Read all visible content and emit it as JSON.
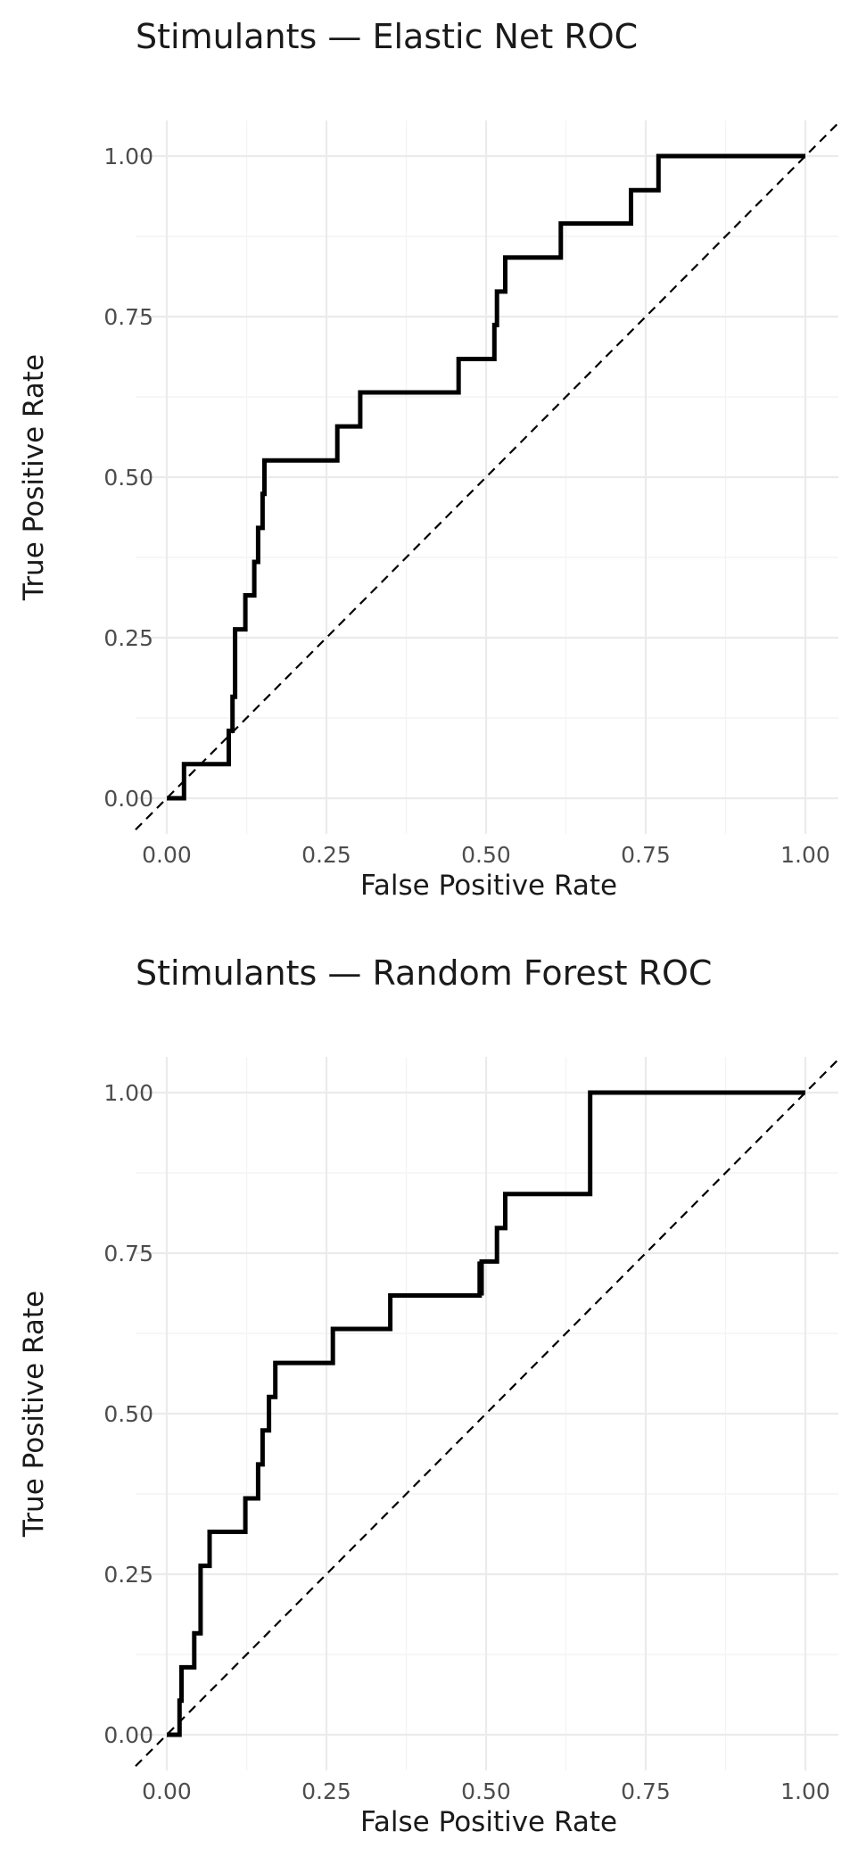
{
  "chart_data": [
    {
      "type": "line",
      "title": "Stimulants — Elastic Net ROC",
      "xlabel": "False Positive Rate",
      "ylabel": "True Positive Rate",
      "xlim": [
        0,
        1
      ],
      "ylim": [
        0,
        1
      ],
      "xticks": [
        "0.00",
        "0.25",
        "0.50",
        "0.75",
        "1.00"
      ],
      "yticks": [
        "0.00",
        "0.25",
        "0.50",
        "0.75",
        "1.00"
      ],
      "grid": true,
      "reference_line": "diagonal dashed y = x",
      "series": [
        {
          "x": [
            0,
            0.027,
            0.027,
            0.097,
            0.097,
            0.103,
            0.103,
            0.107,
            0.107,
            0.123,
            0.123,
            0.137,
            0.137,
            0.143,
            0.143,
            0.15,
            0.15,
            0.153,
            0.153,
            0.267,
            0.267,
            0.303,
            0.303,
            0.457,
            0.457,
            0.513,
            0.513,
            0.517,
            0.517,
            0.53,
            0.53,
            0.617,
            0.617,
            0.727,
            0.727,
            0.77,
            0.77,
            1.0
          ],
          "y": [
            0,
            0,
            0.053,
            0.053,
            0.105,
            0.105,
            0.158,
            0.158,
            0.263,
            0.263,
            0.316,
            0.316,
            0.368,
            0.368,
            0.421,
            0.421,
            0.474,
            0.474,
            0.526,
            0.526,
            0.579,
            0.579,
            0.632,
            0.632,
            0.684,
            0.684,
            0.737,
            0.737,
            0.789,
            0.789,
            0.842,
            0.842,
            0.895,
            0.895,
            0.947,
            0.947,
            1.0,
            1.0
          ]
        }
      ]
    },
    {
      "type": "line",
      "title": "Stimulants — Random Forest ROC",
      "xlabel": "False Positive Rate",
      "ylabel": "True Positive Rate",
      "xlim": [
        0,
        1
      ],
      "ylim": [
        0,
        1
      ],
      "xticks": [
        "0.00",
        "0.25",
        "0.50",
        "0.75",
        "1.00"
      ],
      "yticks": [
        "0.00",
        "0.25",
        "0.50",
        "0.75",
        "1.00"
      ],
      "grid": true,
      "reference_line": "diagonal dashed y = x",
      "series": [
        {
          "x": [
            0,
            0.02,
            0.02,
            0.023,
            0.023,
            0.043,
            0.043,
            0.053,
            0.053,
            0.067,
            0.067,
            0.123,
            0.123,
            0.143,
            0.143,
            0.15,
            0.15,
            0.16,
            0.16,
            0.17,
            0.17,
            0.26,
            0.26,
            0.35,
            0.35,
            0.49,
            0.49,
            0.493,
            0.493,
            0.517,
            0.517,
            0.53,
            0.53,
            0.663,
            0.663,
            1.0
          ],
          "y": [
            0,
            0,
            0.053,
            0.053,
            0.105,
            0.105,
            0.158,
            0.158,
            0.263,
            0.263,
            0.316,
            0.316,
            0.368,
            0.368,
            0.421,
            0.421,
            0.474,
            0.474,
            0.526,
            0.526,
            0.579,
            0.579,
            0.632,
            0.632,
            0.684,
            0.684,
            0.737,
            0.684,
            0.737,
            0.737,
            0.789,
            0.789,
            0.842,
            0.842,
            1.0,
            1.0
          ]
        }
      ]
    }
  ]
}
